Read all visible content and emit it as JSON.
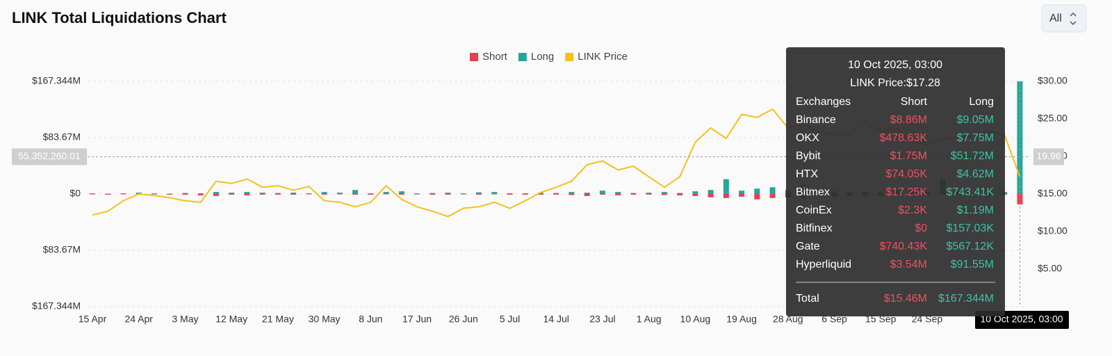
{
  "chart_data": {
    "type": "combo",
    "title": "LINK Total Liquidations Chart",
    "categories": [
      "15 Apr",
      null,
      null,
      "24 Apr",
      null,
      null,
      "3 May",
      null,
      null,
      "12 May",
      null,
      null,
      "21 May",
      null,
      null,
      "30 May",
      null,
      null,
      "8 Jun",
      null,
      null,
      "17 Jun",
      null,
      null,
      "26 Jun",
      null,
      null,
      "5 Jul",
      null,
      null,
      "14 Jul",
      null,
      null,
      "23 Jul",
      null,
      null,
      "1 Aug",
      null,
      null,
      "10 Aug",
      null,
      null,
      "19 Aug",
      null,
      null,
      "28 Aug",
      null,
      null,
      "6 Sep",
      null,
      null,
      "15 Sep",
      null,
      null,
      "24 Sep",
      null,
      null,
      null,
      null,
      null,
      null
    ],
    "series": [
      {
        "name": "Short",
        "color": "#e5404f",
        "kind": "bar",
        "values": [
          -0.5,
          -1,
          -0.5,
          -1,
          -0.5,
          -1,
          -1,
          -2,
          -3,
          -1,
          -2,
          -1,
          -1,
          -1,
          -0.5,
          -1,
          -0.5,
          -1,
          -1,
          -0.5,
          -1,
          -0.5,
          -1,
          -1,
          -0.5,
          -1,
          -0.5,
          -1,
          -1,
          -1,
          -1,
          -1.5,
          -3,
          -1,
          -2,
          -1,
          -1,
          -1.5,
          -2,
          -3,
          -5,
          -6,
          -4,
          -8,
          -6,
          -5,
          -7,
          -3,
          -4,
          -3,
          -2,
          -3,
          -2,
          -1.5,
          -2,
          -1,
          -1,
          -1.5,
          -2,
          -1,
          -15.46
        ]
      },
      {
        "name": "Long",
        "color": "#26a69a",
        "kind": "bar",
        "values": [
          1,
          0.5,
          1,
          2,
          1,
          0.5,
          1.5,
          1,
          3,
          2,
          3,
          2,
          1.5,
          2,
          1,
          3,
          2,
          6,
          1,
          3,
          4,
          1,
          1.5,
          2,
          1,
          2.5,
          3,
          1,
          1,
          2,
          1.5,
          3,
          2,
          5,
          3,
          1.5,
          2,
          3,
          1.5,
          4,
          6,
          22,
          5,
          8,
          10,
          6,
          14,
          3,
          4,
          2,
          3,
          2,
          5,
          3,
          3,
          22,
          3,
          2,
          1.5,
          3,
          167.344
        ]
      },
      {
        "name": "LINK Price",
        "color": "#f2c21b",
        "kind": "line",
        "axis": "y2",
        "values": [
          12.2,
          12.7,
          14.1,
          15.0,
          14.8,
          14.5,
          14.1,
          13.9,
          16.7,
          16.4,
          17.0,
          15.9,
          16.1,
          15.5,
          16.0,
          14.1,
          13.9,
          13.3,
          13.9,
          16.1,
          14.3,
          13.3,
          12.7,
          12.0,
          13.1,
          13.3,
          13.9,
          13.1,
          14.1,
          15.2,
          15.9,
          16.7,
          18.9,
          19.4,
          18.2,
          18.7,
          17.3,
          15.9,
          17.3,
          21.9,
          23.8,
          22.4,
          25.6,
          25.2,
          26.3,
          23.8,
          24.3,
          23.3,
          22.9,
          22.9,
          24.7,
          23.3,
          23.8,
          21.9,
          21.5,
          22.4,
          22.4,
          22.9,
          23.3,
          22.9,
          17.28
        ]
      }
    ],
    "ylim": [
      -167.344,
      167.344
    ],
    "yticks": [
      {
        "value": 167.344,
        "label": "$167.344M"
      },
      {
        "value": 83.67,
        "label": "$83.67M"
      },
      {
        "value": 0,
        "label": "$0"
      },
      {
        "value": -83.67,
        "label": "$83.67M"
      },
      {
        "value": -167.344,
        "label": "$167.344M"
      }
    ],
    "y2lim": [
      0,
      30
    ],
    "y2ticks": [
      {
        "value": 30,
        "label": "$30.00"
      },
      {
        "value": 25,
        "label": "$25.00"
      },
      {
        "value": 20,
        "label": "$20.00"
      },
      {
        "value": 15,
        "label": "$15.00"
      },
      {
        "value": 10,
        "label": "$10.00"
      },
      {
        "value": 5,
        "label": "$5.00"
      }
    ],
    "grid": true,
    "legend": "top",
    "crosshair": {
      "y": {
        "value": 55.35226001,
        "label": "55,352,260.01"
      },
      "y2": {
        "value": 19.96,
        "label": "19.96"
      },
      "x_label": "10 Oct 2025, 03:00"
    }
  },
  "controls": {
    "range": "All"
  },
  "tooltip": {
    "date": "10 Oct 2025, 03:00",
    "price": "LINK Price:$17.28",
    "columns": [
      "Exchanges",
      "Short",
      "Long"
    ],
    "rows": [
      [
        "Binance",
        "$8.86M",
        "$9.05M"
      ],
      [
        "OKX",
        "$478.63K",
        "$7.75M"
      ],
      [
        "Bybit",
        "$1.75M",
        "$51.72M"
      ],
      [
        "HTX",
        "$74.05K",
        "$4.62M"
      ],
      [
        "Bitmex",
        "$17.25K",
        "$743.41K"
      ],
      [
        "CoinEx",
        "$2.3K",
        "$1.19M"
      ],
      [
        "Bitfinex",
        "$0",
        "$157.03K"
      ],
      [
        "Gate",
        "$740.43K",
        "$567.12K"
      ],
      [
        "Hyperliquid",
        "$3.54M",
        "$91.55M"
      ]
    ],
    "total": [
      "Total",
      "$15.46M",
      "$167.344M"
    ]
  }
}
